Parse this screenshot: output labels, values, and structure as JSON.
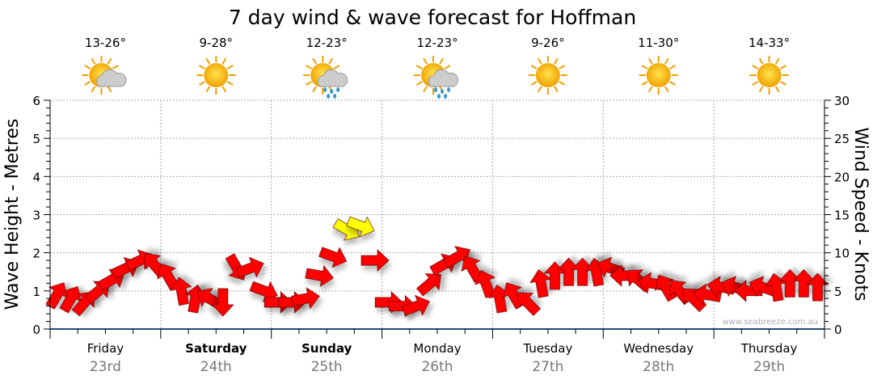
{
  "chart_data": {
    "type": "scatter",
    "title": "7 day wind & wave forecast for Hoffman",
    "ylabel_left": "Wave Height - Metres",
    "ylabel_right": "Wind Speed - Knots",
    "ylim_left": [
      0,
      6
    ],
    "ylim_right": [
      0,
      30
    ],
    "yticks_left": [
      "0",
      "1",
      "2",
      "3",
      "4",
      "5",
      "6"
    ],
    "yticks_right": [
      "0",
      "5",
      "10",
      "15",
      "20",
      "25",
      "30"
    ],
    "watermark": "www.seabreeze.com.au",
    "days": [
      {
        "name": "Friday",
        "date": "23rd",
        "bold": false,
        "temp": "13-26°",
        "icon": "partly-cloudy"
      },
      {
        "name": "Saturday",
        "date": "24th",
        "bold": true,
        "temp": "9-28°",
        "icon": "sunny"
      },
      {
        "name": "Sunday",
        "date": "25th",
        "bold": true,
        "temp": "12-23°",
        "icon": "showers"
      },
      {
        "name": "Monday",
        "date": "26th",
        "bold": false,
        "temp": "12-23°",
        "icon": "showers"
      },
      {
        "name": "Tuesday",
        "date": "27th",
        "bold": false,
        "temp": "9-26°",
        "icon": "sunny"
      },
      {
        "name": "Wednesday",
        "date": "28th",
        "bold": false,
        "temp": "11-30°",
        "icon": "sunny"
      },
      {
        "name": "Thursday",
        "date": "29th",
        "bold": false,
        "temp": "14-33°",
        "icon": "sunny"
      }
    ],
    "wind_speed_knots": [
      4.5,
      4,
      3.5,
      5,
      6.5,
      8,
      9,
      8.5,
      7,
      5,
      4,
      4,
      3.5,
      8,
      8,
      5,
      3.5,
      3.5,
      4,
      7,
      9.5,
      13,
      13.5,
      9,
      3.5,
      3,
      3,
      6,
      8.5,
      9.5,
      8,
      6,
      4,
      4.5,
      3.5,
      6,
      7,
      7.5,
      7.5,
      7.5,
      8,
      7,
      6.5,
      6,
      5.5,
      5,
      4,
      4.5,
      5.5,
      5.5,
      5,
      5.5,
      5.5,
      6,
      6,
      5.5
    ],
    "wind_arrow_angle_deg": [
      60,
      60,
      50,
      40,
      30,
      25,
      25,
      130,
      120,
      100,
      80,
      150,
      270,
      300,
      20,
      340,
      0,
      0,
      10,
      350,
      340,
      330,
      340,
      0,
      0,
      0,
      20,
      40,
      30,
      30,
      120,
      110,
      100,
      120,
      135,
      100,
      90,
      90,
      90,
      100,
      160,
      180,
      140,
      170,
      120,
      130,
      135,
      170,
      170,
      160,
      180,
      160,
      100,
      90,
      90,
      90
    ],
    "colors": {
      "light": "#ff0000",
      "moderate": "#ffff00",
      "axis": "#1f4e79"
    }
  }
}
